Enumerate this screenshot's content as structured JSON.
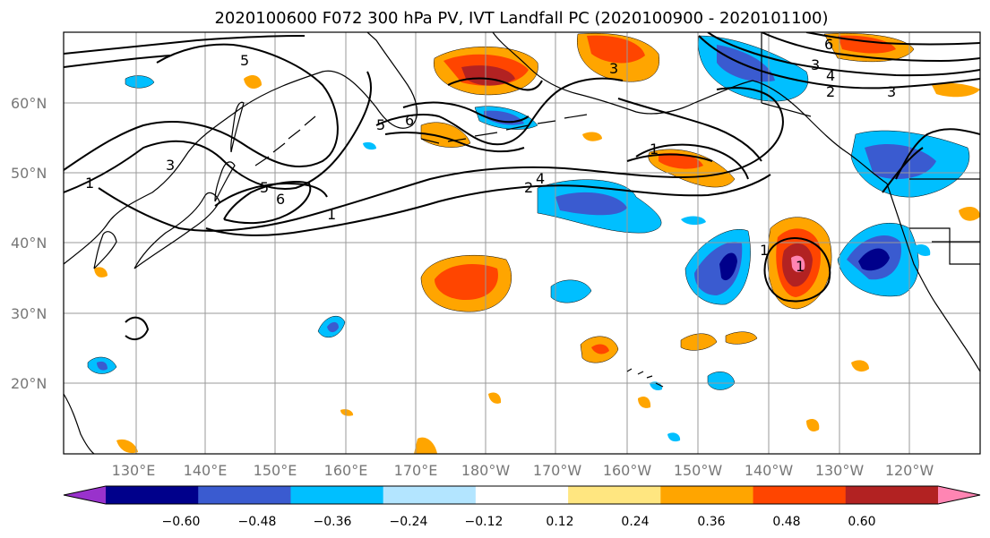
{
  "title": "2020100600 F072 300 hPa PV, IVT Landfall PC (2020100900 - 2020101100)",
  "map": {
    "lat_labels": [
      "60°N",
      "50°N",
      "40°N",
      "30°N",
      "20°N"
    ],
    "lon_labels": [
      "130°E",
      "140°E",
      "150°E",
      "160°E",
      "170°E",
      "180°W",
      "170°W",
      "160°W",
      "150°W",
      "140°W",
      "130°W",
      "120°W"
    ],
    "pv_contour_labels": [
      "5",
      "6",
      "5",
      "6",
      "3",
      "3",
      "4",
      "2",
      "3",
      "1",
      "1",
      "5",
      "6",
      "3",
      "1",
      "2",
      "4",
      "1",
      "1"
    ],
    "projection": "equirectangular",
    "extent_lon": [
      120,
      245
    ],
    "extent_lat": [
      10,
      70
    ]
  },
  "colorbar": {
    "ticks": [
      "−0.60",
      "−0.48",
      "−0.36",
      "−0.24",
      "−0.12",
      "0.12",
      "0.24",
      "0.36",
      "0.48",
      "0.60"
    ],
    "colors": [
      "#9932cc",
      "#00008b",
      "#3a5bd0",
      "#00bfff",
      "#b3e5ff",
      "#ffffff",
      "#ffe680",
      "#ffa500",
      "#ff4500",
      "#b22222",
      "#ff85b3"
    ],
    "extend": "both"
  },
  "colors": {
    "neg_strong": "#00008b",
    "neg_mid": "#3a5bd0",
    "neg_light": "#00bfff",
    "neg_pale": "#b3e5ff",
    "pos_pale": "#ffe680",
    "pos_light": "#ffa500",
    "pos_mid": "#ff4500",
    "pos_strong": "#b22222",
    "pos_extreme": "#ff85b3",
    "neg_extreme": "#9932cc"
  }
}
